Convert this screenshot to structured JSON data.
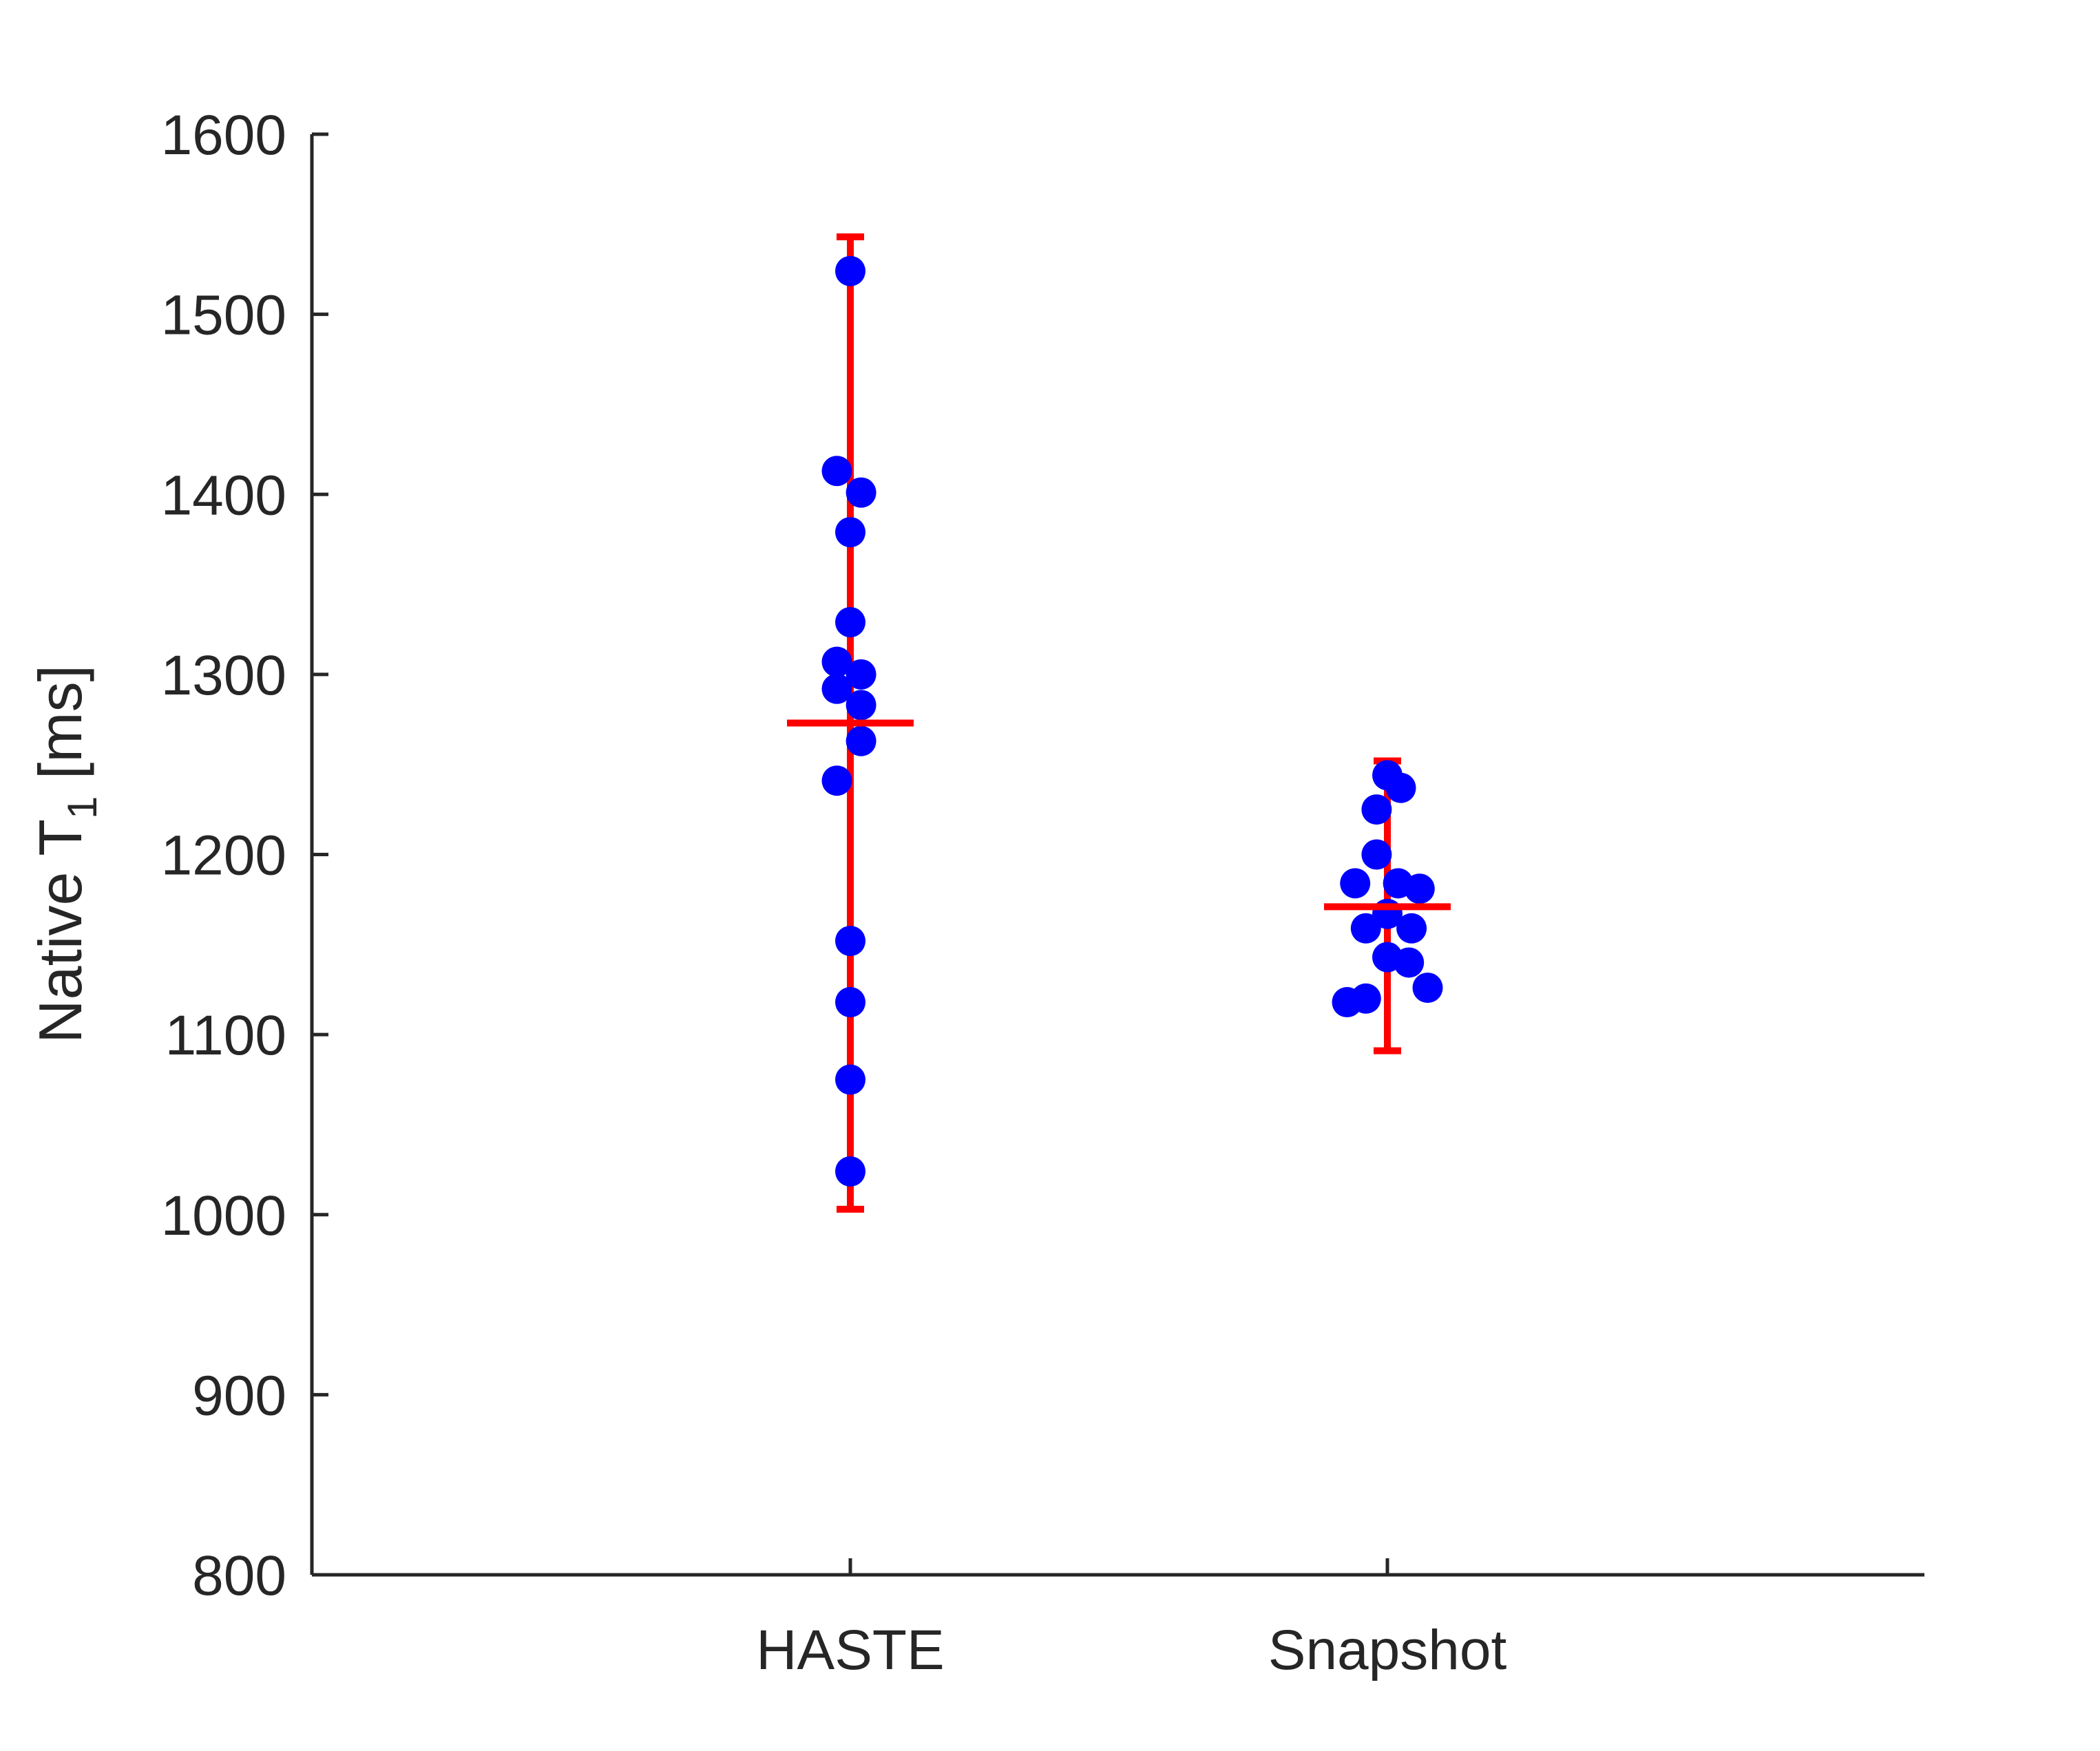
{
  "chart_data": {
    "type": "scatter",
    "title": "",
    "xlabel": "",
    "ylabel": {
      "text": "Native T",
      "subscript": "1",
      "suffix": " [ms]"
    },
    "ylim": [
      800,
      1600
    ],
    "yticks": [
      "800",
      "900",
      "1000",
      "1100",
      "1200",
      "1300",
      "1400",
      "1500",
      "1600"
    ],
    "categories": [
      "HASTE",
      "Snapshot"
    ],
    "grid": false,
    "marker_color": "#0000FF",
    "errorbar_color": "#FF0000",
    "series": [
      {
        "category": "HASTE",
        "points": [
          {
            "offset": 0.0,
            "value": 1524
          },
          {
            "offset": -0.05,
            "value": 1413
          },
          {
            "offset": 0.04,
            "value": 1401
          },
          {
            "offset": 0.0,
            "value": 1379
          },
          {
            "offset": 0.0,
            "value": 1329
          },
          {
            "offset": -0.05,
            "value": 1307
          },
          {
            "offset": 0.04,
            "value": 1300
          },
          {
            "offset": -0.05,
            "value": 1292
          },
          {
            "offset": 0.04,
            "value": 1283
          },
          {
            "offset": 0.04,
            "value": 1263
          },
          {
            "offset": -0.05,
            "value": 1241
          },
          {
            "offset": 0.0,
            "value": 1152
          },
          {
            "offset": 0.0,
            "value": 1118
          },
          {
            "offset": 0.0,
            "value": 1075
          },
          {
            "offset": 0.0,
            "value": 1024
          }
        ],
        "mean": 1273,
        "error_low": 1003,
        "error_high": 1543
      },
      {
        "category": "Snapshot",
        "points": [
          {
            "offset": 0.0,
            "value": 1244
          },
          {
            "offset": 0.05,
            "value": 1237
          },
          {
            "offset": -0.04,
            "value": 1225
          },
          {
            "offset": -0.04,
            "value": 1200
          },
          {
            "offset": -0.12,
            "value": 1184
          },
          {
            "offset": 0.04,
            "value": 1184
          },
          {
            "offset": 0.12,
            "value": 1181
          },
          {
            "offset": 0.0,
            "value": 1167
          },
          {
            "offset": -0.08,
            "value": 1159
          },
          {
            "offset": 0.09,
            "value": 1159
          },
          {
            "offset": 0.0,
            "value": 1143
          },
          {
            "offset": 0.08,
            "value": 1140
          },
          {
            "offset": 0.15,
            "value": 1126
          },
          {
            "offset": -0.08,
            "value": 1120
          },
          {
            "offset": -0.15,
            "value": 1118
          }
        ],
        "mean": 1171,
        "error_low": 1091,
        "error_high": 1252
      }
    ]
  }
}
